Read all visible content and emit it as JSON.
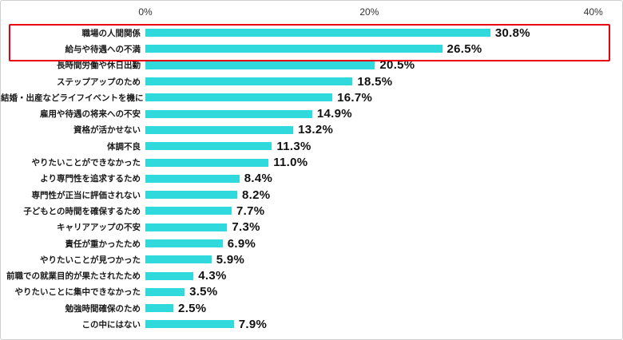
{
  "chart_data": {
    "type": "bar",
    "orientation": "horizontal",
    "title": "",
    "xlabel": "",
    "ylabel": "",
    "unit": "%",
    "xlim": [
      0,
      40
    ],
    "x_ticks": [
      "0%",
      "20%",
      "40%"
    ],
    "x_tick_values": [
      0,
      20,
      40
    ],
    "grid": false,
    "legend": "none",
    "categories": [
      "職場の人間関係",
      "給与や待遇への不満",
      "長時間労働や休日出勤",
      "ステップアップのため",
      "結婚・出産などライフイベントを機に",
      "雇用や待遇の将来への不安",
      "資格が活かせない",
      "体調不良",
      "やりたいことができなかった",
      "より専門性を追求するため",
      "専門性が正当に評価されない",
      "子どもとの時間を確保するため",
      "キャリアアップの不安",
      "責任が重かったため",
      "やりたいことが見つかった",
      "前職での就業目的が果たされたため",
      "やりたいことに集中できなかった",
      "勉強時間確保のため",
      "この中にはない"
    ],
    "values": [
      30.8,
      26.5,
      20.5,
      18.5,
      16.7,
      14.9,
      13.2,
      11.3,
      11.0,
      8.4,
      8.2,
      7.7,
      7.3,
      6.9,
      5.9,
      4.3,
      3.5,
      2.5,
      7.9
    ],
    "value_labels": [
      "30.8%",
      "26.5%",
      "20.5%",
      "18.5%",
      "16.7%",
      "14.9%",
      "13.2%",
      "11.3%",
      "11.0%",
      "8.4%",
      "8.2%",
      "7.7%",
      "7.3%",
      "6.9%",
      "5.9%",
      "4.3%",
      "3.5%",
      "2.5%",
      "7.9%"
    ],
    "bar_color": "#2FD9DC",
    "highlight": {
      "rows": [
        0,
        1
      ],
      "border_color": "#E60012"
    }
  }
}
